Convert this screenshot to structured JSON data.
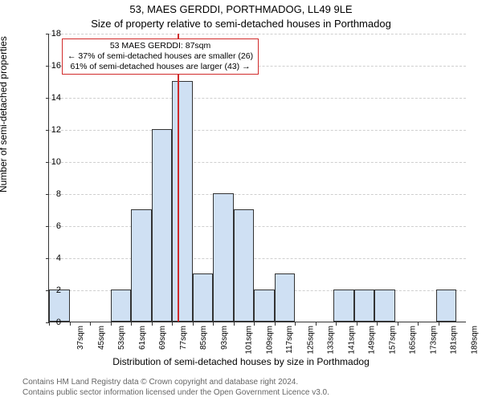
{
  "chart": {
    "type": "histogram",
    "title": "53, MAES GERDDI, PORTHMADOG, LL49 9LE",
    "subtitle": "Size of property relative to semi-detached houses in Porthmadog",
    "ylabel": "Number of semi-detached properties",
    "xlabel": "Distribution of semi-detached houses by size in Porthmadog",
    "background_color": "#ffffff",
    "bar_fill": "#cfe0f3",
    "bar_border": "#333333",
    "grid_color": "#cfcfcf",
    "marker_color": "#d12a2a",
    "ylim": [
      0,
      18
    ],
    "ytick_step": 2,
    "x_min": 37,
    "x_max": 200,
    "x_tick_step": 8,
    "x_unit": "sqm",
    "bars": [
      {
        "x0": 37,
        "x1": 45,
        "count": 2
      },
      {
        "x0": 45,
        "x1": 53,
        "count": 0
      },
      {
        "x0": 53,
        "x1": 61,
        "count": 0
      },
      {
        "x0": 61,
        "x1": 69,
        "count": 2
      },
      {
        "x0": 69,
        "x1": 77,
        "count": 7
      },
      {
        "x0": 77,
        "x1": 85,
        "count": 12
      },
      {
        "x0": 85,
        "x1": 93,
        "count": 15
      },
      {
        "x0": 93,
        "x1": 101,
        "count": 3
      },
      {
        "x0": 101,
        "x1": 109,
        "count": 8
      },
      {
        "x0": 109,
        "x1": 117,
        "count": 7
      },
      {
        "x0": 117,
        "x1": 125,
        "count": 2
      },
      {
        "x0": 125,
        "x1": 133,
        "count": 3
      },
      {
        "x0": 133,
        "x1": 141,
        "count": 0
      },
      {
        "x0": 141,
        "x1": 148,
        "count": 0
      },
      {
        "x0": 148,
        "x1": 156,
        "count": 2
      },
      {
        "x0": 156,
        "x1": 164,
        "count": 2
      },
      {
        "x0": 164,
        "x1": 172,
        "count": 2
      },
      {
        "x0": 172,
        "x1": 180,
        "count": 0
      },
      {
        "x0": 180,
        "x1": 188,
        "count": 0
      },
      {
        "x0": 188,
        "x1": 196,
        "count": 2
      },
      {
        "x0": 196,
        "x1": 200,
        "count": 0
      }
    ],
    "marker_value": 87,
    "annotation": {
      "line1": "53 MAES GERDDI: 87sqm",
      "line2": "← 37% of semi-detached houses are smaller (26)",
      "line3": "61% of semi-detached houses are larger (43) →"
    },
    "footnote_line1": "Contains HM Land Registry data © Crown copyright and database right 2024.",
    "footnote_line2": "Contains public sector information licensed under the Open Government Licence v3.0.",
    "title_fontsize": 13,
    "label_fontsize": 12,
    "tick_fontsize": 11
  }
}
